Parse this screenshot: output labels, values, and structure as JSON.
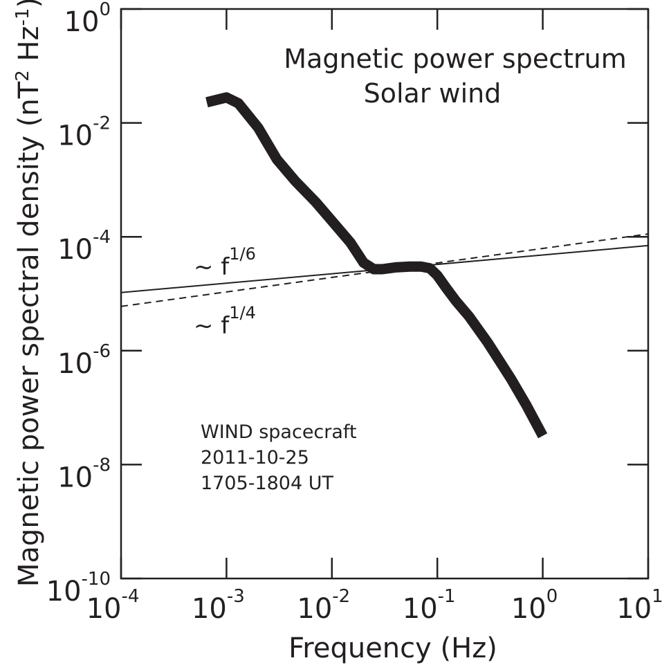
{
  "chart_data": {
    "type": "line",
    "title": "Magnetic power spectrum",
    "subtitle": "Solar wind",
    "xlabel": "Frequency  (Hz)",
    "ylabel": {
      "text": "Magnetic power spectral density (nT",
      "sup1": "2",
      "mid": " Hz",
      "sup2": "-1",
      "end": ")"
    },
    "x_scale": "log",
    "y_scale": "log",
    "xlim": [
      0.0001,
      10
    ],
    "ylim": [
      1e-10,
      1
    ],
    "x_ticks": [
      {
        "value": 0.0001,
        "base": "10",
        "exp": "-4"
      },
      {
        "value": 0.001,
        "base": "10",
        "exp": "-3"
      },
      {
        "value": 0.01,
        "base": "10",
        "exp": "-2"
      },
      {
        "value": 0.1,
        "base": "10",
        "exp": "-1"
      },
      {
        "value": 1,
        "base": "10",
        "exp": "0"
      },
      {
        "value": 10,
        "base": "10",
        "exp": "1"
      }
    ],
    "y_ticks": [
      {
        "value": 1e-10,
        "base": "10",
        "exp": "-10"
      },
      {
        "value": 1e-08,
        "base": "10",
        "exp": "-8"
      },
      {
        "value": 1e-06,
        "base": "10",
        "exp": "-6"
      },
      {
        "value": 0.0001,
        "base": "10",
        "exp": "-4"
      },
      {
        "value": 0.01,
        "base": "10",
        "exp": "-2"
      },
      {
        "value": 1,
        "base": "10",
        "exp": "0"
      }
    ],
    "grid": false,
    "series": [
      {
        "style": "thick-solid",
        "color": "#231f20",
        "x": [
          0.00065,
          0.001,
          0.0013,
          0.002,
          0.003,
          0.0045,
          0.007,
          0.01,
          0.015,
          0.02,
          0.025,
          0.03,
          0.04,
          0.055,
          0.07,
          0.085,
          0.1,
          0.12,
          0.15,
          0.2,
          0.3,
          0.5,
          0.7,
          1.0
        ],
        "y": [
          0.023,
          0.028,
          0.022,
          0.0082,
          0.0023,
          0.00095,
          0.00041,
          0.00019,
          7.9e-05,
          3.5e-05,
          2.7e-05,
          2.7e-05,
          2.9e-05,
          3e-05,
          3e-05,
          2.8e-05,
          2.1e-05,
          1.3e-05,
          7.5e-06,
          4e-06,
          1.4e-06,
          3.2e-07,
          1.1e-07,
          3.2e-08
        ]
      },
      {
        "name": "~ f",
        "exp": "1/6",
        "style": "thin-solid",
        "color": "#231f20",
        "x": [
          0.0001,
          10
        ],
        "y": [
          1.05e-05,
          7e-05
        ]
      },
      {
        "name": "~ f",
        "exp": "1/4",
        "style": "dashed",
        "color": "#231f20",
        "x": [
          0.0001,
          10
        ],
        "y": [
          6e-06,
          0.000112
        ]
      }
    ],
    "annotation": [
      "WIND spacecraft",
      "2011-10-25",
      "1705-1804 UT"
    ]
  }
}
